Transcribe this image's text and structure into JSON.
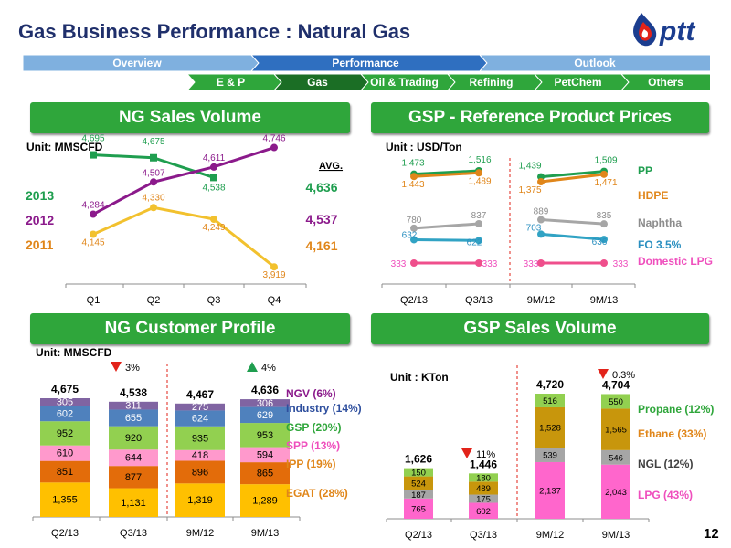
{
  "title": "Gas Business Performance : Natural Gas",
  "logo_text": "ptt",
  "page_number": "12",
  "colors": {
    "brand_navy": "#1f2f6b",
    "nav_blue": "#7fb0df",
    "nav_blue_active": "#2f6fc0",
    "green": "#2fa63b",
    "nav_green_active": "#1b6e25"
  },
  "nav": {
    "top": [
      "Overview",
      "Performance",
      "Outlook"
    ],
    "top_active": 1,
    "sub": [
      "E & P",
      "Gas",
      "Oil & Trading",
      "Refining",
      "PetChem",
      "Others"
    ],
    "sub_active": 1
  },
  "panels": {
    "ng_sales": {
      "title": "NG Sales Volume",
      "unit": "Unit: MMSCFD",
      "avg_label": "AVG."
    },
    "gsp_prices": {
      "title": "GSP - Reference Product Prices",
      "unit": "Unit : USD/Ton"
    },
    "ng_customer": {
      "title": "NG Customer Profile",
      "unit": "Unit: MMSCFD"
    },
    "gsp_sales": {
      "title": "GSP Sales Volume",
      "unit": "Unit : KTon"
    }
  },
  "chart_data": [
    {
      "id": "ng_sales_volume",
      "type": "line",
      "categories": [
        "Q1",
        "Q2",
        "Q3",
        "Q4"
      ],
      "series": [
        {
          "name": "2013",
          "values": [
            4695,
            4675,
            4538,
            null
          ],
          "avg": "4,636",
          "color": "#1f9e4f",
          "labels": [
            "4,695",
            "4,675",
            "4,538",
            ""
          ]
        },
        {
          "name": "2012",
          "values": [
            4284,
            4507,
            4611,
            4746
          ],
          "avg": "4,537",
          "color": "#8b1a8b",
          "labels": [
            "4,284",
            "4,507",
            "4,611",
            "4,746"
          ]
        },
        {
          "name": "2011",
          "values": [
            4145,
            4330,
            4249,
            3919
          ],
          "avg": "4,161",
          "color": "#f2c12e",
          "labels": [
            "4,145",
            "4,330",
            "4,249",
            "3,919"
          ]
        }
      ],
      "label_colors": {
        "2013": "#1f9e4f",
        "2012": "#8b1a8b",
        "2011": "#e0861a"
      },
      "ylim": [
        3800,
        4800
      ]
    },
    {
      "id": "gsp_reference_prices",
      "type": "line",
      "categories": [
        "Q2/13",
        "Q3/13",
        "9M/12",
        "9M/13"
      ],
      "groups": [
        [
          0,
          1
        ],
        [
          2,
          3
        ]
      ],
      "series": [
        {
          "name": "PP",
          "values": [
            1473,
            1516,
            1439,
            1509
          ],
          "color": "#1f9e4f",
          "label_color": "#1f9e4f"
        },
        {
          "name": "HDPE",
          "values": [
            1443,
            1489,
            1375,
            1471
          ],
          "color": "#e0861a",
          "label_color": "#e0861a"
        },
        {
          "name": "Naphtha",
          "values": [
            780,
            837,
            889,
            835
          ],
          "color": "#a6a6a6",
          "label_color": "#8c8c8c"
        },
        {
          "name": "FO 3.5%",
          "values": [
            632,
            622,
            703,
            636
          ],
          "color": "#31a3c4",
          "label_color": "#2a8fc0"
        },
        {
          "name": "Domestic LPG",
          "values": [
            333,
            333,
            333,
            333
          ],
          "color": "#ef4f8c",
          "label_color": "#ef4fbd"
        }
      ],
      "value_labels": {
        "PP": [
          "1,473",
          "1,516",
          "1,439",
          "1,509"
        ],
        "HDPE": [
          "1,443",
          "1,489",
          "1,375",
          "1,471"
        ],
        "Naphtha": [
          "780",
          "837",
          "889",
          "835"
        ],
        "FO 3.5%": [
          "632",
          "622",
          "703",
          "636"
        ],
        "Domestic LPG": [
          "333",
          "333",
          "333",
          "333"
        ]
      }
    },
    {
      "id": "ng_customer_profile",
      "type": "bar",
      "stacked": true,
      "categories": [
        "Q2/13",
        "Q3/13",
        "9M/12",
        "9M/13"
      ],
      "totals": [
        "4,675",
        "4,538",
        "4,467",
        "4,636"
      ],
      "series": [
        {
          "name": "EGAT (28%)",
          "values": [
            1355,
            1131,
            1319,
            1289
          ],
          "color": "#ffc000",
          "label_color": "#e0861a"
        },
        {
          "name": "IPP (19%)",
          "values": [
            851,
            877,
            896,
            865
          ],
          "color": "#e36c0a",
          "label_color": "#e0861a"
        },
        {
          "name": "SPP (13%)",
          "values": [
            610,
            644,
            418,
            594
          ],
          "color": "#ff99cc",
          "label_color": "#ef4fbd"
        },
        {
          "name": "GSP (20%)",
          "values": [
            952,
            920,
            935,
            953
          ],
          "color": "#92d050",
          "label_color": "#2fa63b"
        },
        {
          "name": "Industry (14%)",
          "values": [
            602,
            655,
            624,
            629
          ],
          "color": "#4f81bd",
          "label_color": "#2e4f9e"
        },
        {
          "name": "NGV (6%)",
          "values": [
            305,
            311,
            275,
            306
          ],
          "color": "#8064a2",
          "label_color": "#8b1a8b"
        }
      ],
      "changes": [
        {
          "text": "3%",
          "direction": "down",
          "between": [
            0,
            1
          ]
        },
        {
          "text": "4%",
          "direction": "up",
          "between": [
            2,
            3
          ]
        }
      ]
    },
    {
      "id": "gsp_sales_volume",
      "type": "bar",
      "stacked": true,
      "categories": [
        "Q2/13",
        "Q3/13",
        "9M/12",
        "9M/13"
      ],
      "totals": [
        "1,626",
        "1,446",
        "4,720",
        "4,704"
      ],
      "series": [
        {
          "name": "LPG (43%)",
          "values": [
            765,
            602,
            2137,
            2043
          ],
          "color": "#ff66cc",
          "label_color": "#ef4fbd"
        },
        {
          "name": "NGL (12%)",
          "values": [
            187,
            175,
            539,
            546
          ],
          "color": "#a6a6a6",
          "label_color": "#404040"
        },
        {
          "name": "Ethane (33%)",
          "values": [
            524,
            489,
            1528,
            1565
          ],
          "color": "#c8960c",
          "label_color": "#e0861a"
        },
        {
          "name": "Propane (12%)",
          "values": [
            150,
            180,
            516,
            550
          ],
          "color": "#92d050",
          "label_color": "#2fa63b"
        }
      ],
      "changes": [
        {
          "text": "11%",
          "direction": "down",
          "between": [
            0,
            1
          ]
        },
        {
          "text": "0.3%",
          "direction": "down",
          "between": [
            2,
            3
          ]
        }
      ]
    }
  ]
}
